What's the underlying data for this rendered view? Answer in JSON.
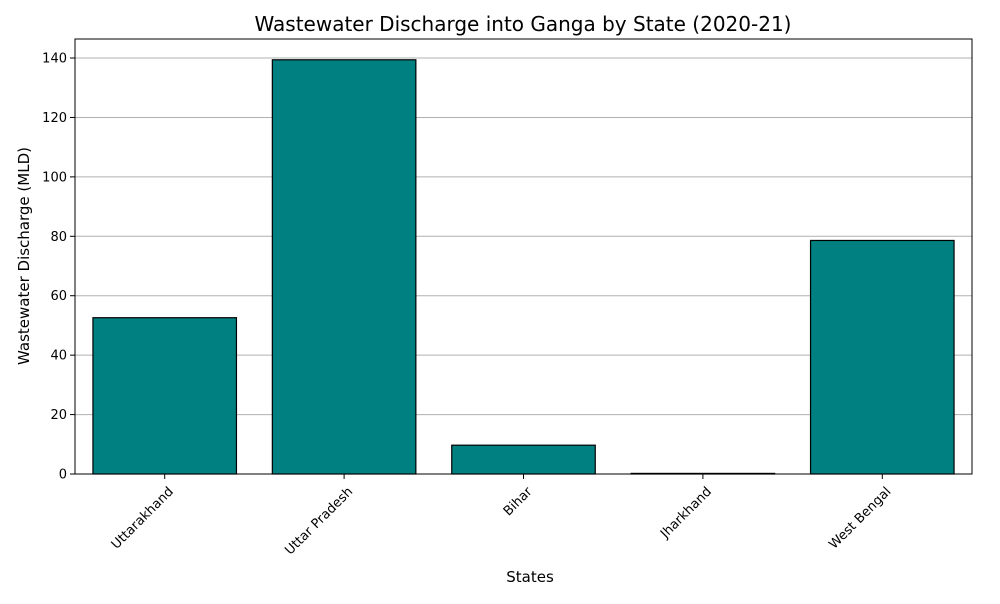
{
  "chart_data": {
    "type": "bar",
    "title": "Wastewater Discharge into Ganga by State (2020-21)",
    "xlabel": "States",
    "ylabel": "Wastewater Discharge (MLD)",
    "categories": [
      "Uttarakhand",
      "Uttar Pradesh",
      "Bihar",
      "Jharkhand",
      "West Bengal"
    ],
    "values": [
      52.6,
      139.4,
      9.7,
      0.2,
      78.6
    ],
    "ylim": [
      0,
      146.4
    ],
    "yticks": [
      0,
      20,
      40,
      60,
      80,
      100,
      120,
      140
    ],
    "grid": "y-major",
    "legend": "none",
    "colors": {
      "bar": "#008080",
      "edge": "#000000",
      "grid": "#b0b0b0"
    }
  }
}
